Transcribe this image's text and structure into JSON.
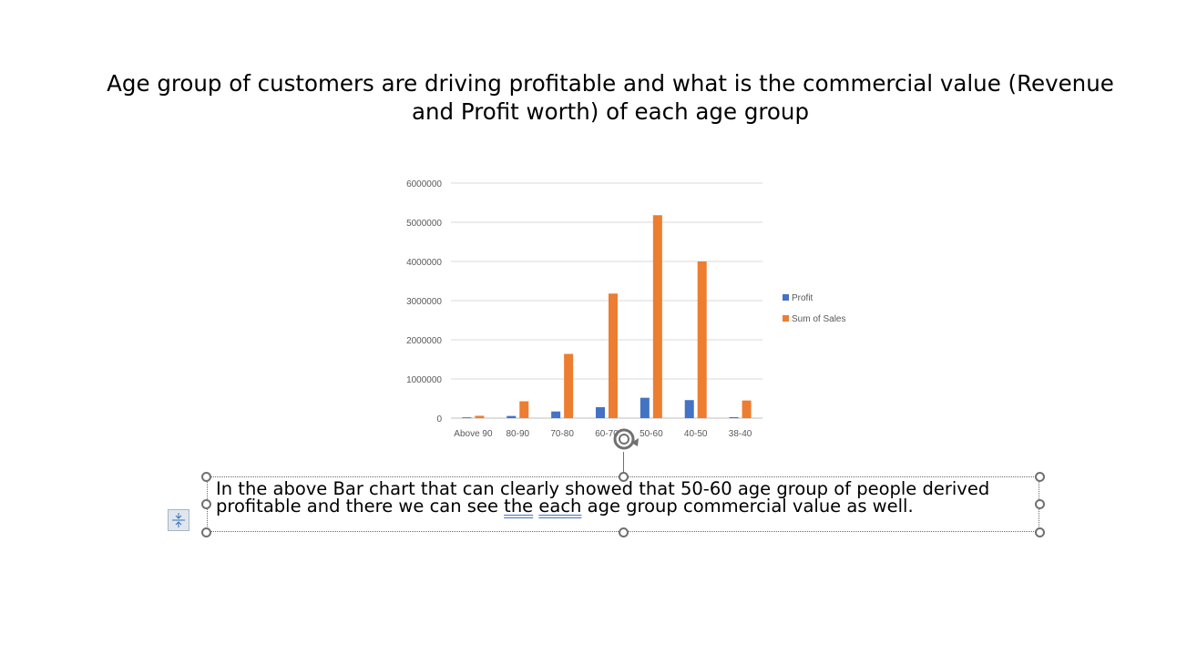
{
  "slide": {
    "title": "Age group of customers are driving profitable and what is the commercial value (Revenue and Profit worth) of each age group",
    "textbox": {
      "line1": "In the above Bar chart that can clearly showed that 50-60 age group of people derived",
      "line2_a": "profitable and there we can see ",
      "line2_b": "the",
      "line2_c": " ",
      "line2_d": "each",
      "line2_e": " age group commercial value as well."
    }
  },
  "chart_data": {
    "type": "bar",
    "categories": [
      "Above 90",
      "80-90",
      "70-80",
      "60-70",
      "50-60",
      "40-50",
      "38-40"
    ],
    "series": [
      {
        "name": "Profit",
        "values": [
          20000,
          55000,
          170000,
          280000,
          520000,
          460000,
          25000
        ],
        "color": "#4472c4"
      },
      {
        "name": "Sum of Sales",
        "values": [
          60000,
          430000,
          1640000,
          3180000,
          5180000,
          4000000,
          450000
        ],
        "color": "#ed7d31"
      }
    ],
    "title": "",
    "xlabel": "",
    "ylabel": "",
    "ylim": [
      0,
      6000000
    ],
    "yticks": [
      "0",
      "1000000",
      "2000000",
      "3000000",
      "4000000",
      "5000000",
      "6000000"
    ],
    "grid": true,
    "legend": "right"
  },
  "icons": {
    "rotate": "rotate-icon",
    "layout_options": "layout-options-icon"
  },
  "colors": {
    "selection": "#707070",
    "underline": "#4472c4"
  }
}
